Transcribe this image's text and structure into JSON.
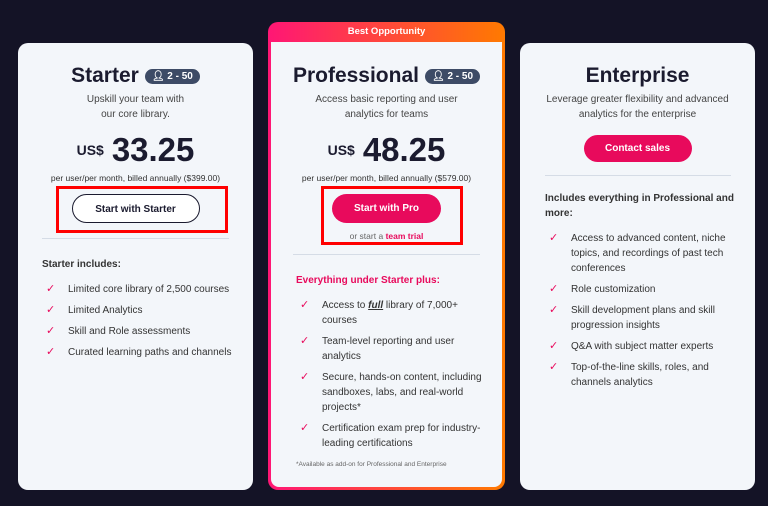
{
  "accent": "#e80a5c",
  "starter": {
    "name": "Starter",
    "badge": "2 - 50",
    "desc1": "Upskill your team with",
    "desc2": "our core library.",
    "currency": "US$",
    "price": "33.25",
    "billed": "per user/per month, billed annually ($399.00)",
    "cta": "Start with Starter",
    "features_title": "Starter includes:",
    "features": [
      "Limited core library of 2,500 courses",
      "Limited Analytics",
      "Skill and Role assessments",
      "Curated learning paths and channels"
    ]
  },
  "pro": {
    "banner": "Best Opportunity",
    "name": "Professional",
    "badge": "2 - 50",
    "desc1": "Access basic reporting and user",
    "desc2": "analytics for teams",
    "currency": "US$",
    "price": "48.25",
    "billed": "per user/per month, billed annually ($579.00)",
    "cta": "Start with Pro",
    "trial_prefix": "or start a",
    "trial_link": "team trial",
    "features_title": "Everything under Starter plus:",
    "f1_pre": "Access to",
    "f1_em": "full",
    "f1_post": "library of 7,000+ courses",
    "features": [
      "Team-level reporting and user analytics",
      "Secure, hands-on content, including sandboxes, labs, and real-world projects*",
      "Certification exam prep for industry-leading certifications"
    ],
    "note": "*Available as add-on for Professional and Enterprise"
  },
  "enterprise": {
    "name": "Enterprise",
    "desc1": "Leverage greater flexibility and advanced",
    "desc2": "analytics for the enterprise",
    "cta": "Contact sales",
    "features_title": "Includes everything in Professional and more:",
    "features": [
      "Access to advanced content, niche topics, and recordings of past tech conferences",
      "Role customization",
      "Skill development plans and skill progression insights",
      "Q&A with subject matter experts",
      "Top-of-the-line skills, roles, and channels analytics"
    ]
  }
}
